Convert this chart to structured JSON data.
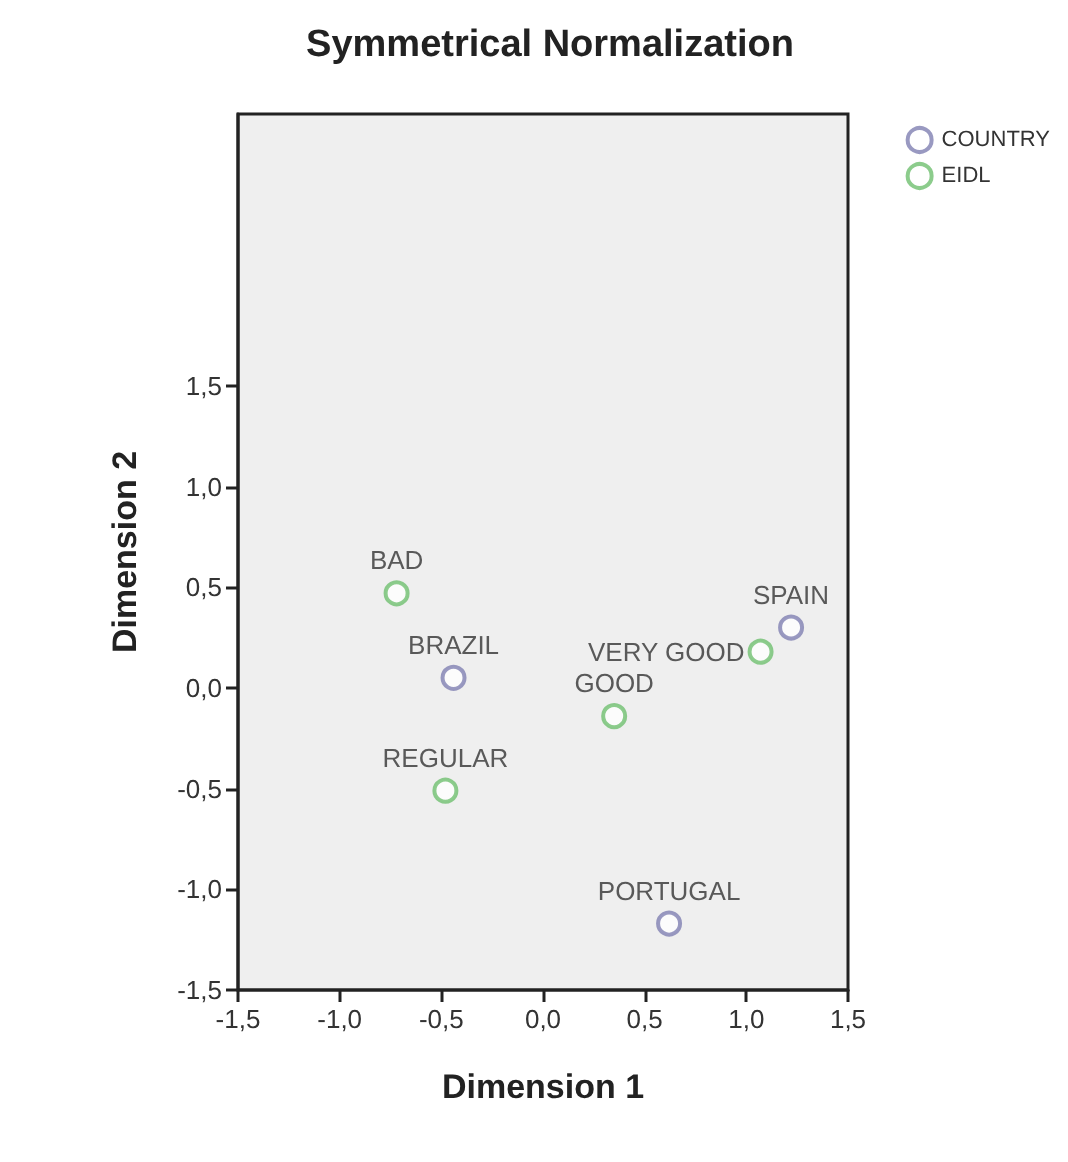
{
  "chart_data": {
    "type": "scatter",
    "title": "Symmetrical Normalization",
    "xlabel": "Dimension 1",
    "ylabel": "Dimension 2",
    "series": [
      {
        "name": "COUNTRY",
        "color": "#7f7fb2",
        "x": [
          -0.44,
          1.22,
          0.62
        ],
        "values": [
          0.05,
          0.3,
          -1.17
        ]
      },
      {
        "name": "EIDL",
        "color": "#6fbf6f",
        "x": [
          -0.72,
          -0.48,
          0.35,
          1.07
        ],
        "values": [
          0.47,
          -0.51,
          -0.14,
          0.18
        ]
      }
    ],
    "annotations": [
      {
        "text": "BRAZIL",
        "x": -0.44,
        "y": 0.05
      },
      {
        "text": "SPAIN",
        "x": 1.22,
        "y": 0.3
      },
      {
        "text": "PORTUGAL",
        "x": 0.62,
        "y": -1.17
      },
      {
        "text": "BAD",
        "x": -0.72,
        "y": 0.47
      },
      {
        "text": "REGULAR",
        "x": -0.48,
        "y": -0.51
      },
      {
        "text": "GOOD",
        "x": 0.35,
        "y": -0.14
      },
      {
        "text": "VERY GOOD",
        "x": 1.07,
        "y": 0.18
      }
    ],
    "xlim": [
      -1.5,
      1.5
    ],
    "ylim": [
      -1.5,
      2.85
    ],
    "xticks": [
      {
        "value": -1.5,
        "label": "-1,5"
      },
      {
        "value": -1.0,
        "label": "-1,0"
      },
      {
        "value": -0.5,
        "label": "-0,5"
      },
      {
        "value": 0,
        "label": "0,0"
      },
      {
        "value": 0.5,
        "label": "0,5"
      },
      {
        "value": 1.0,
        "label": "1,0"
      },
      {
        "value": 1.5,
        "label": "1,5"
      }
    ],
    "yticks": [
      {
        "value": -1.5,
        "label": "-1,5"
      },
      {
        "value": -1.0,
        "label": "-1,0"
      },
      {
        "value": -0.5,
        "label": "-0,5"
      },
      {
        "value": 0,
        "label": "0,0"
      },
      {
        "value": 0.5,
        "label": "0,5"
      },
      {
        "value": 1.0,
        "label": "1,0"
      },
      {
        "value": 1.5,
        "label": "1,5"
      }
    ],
    "grid": false,
    "legend": "top right",
    "marker": "circle"
  }
}
